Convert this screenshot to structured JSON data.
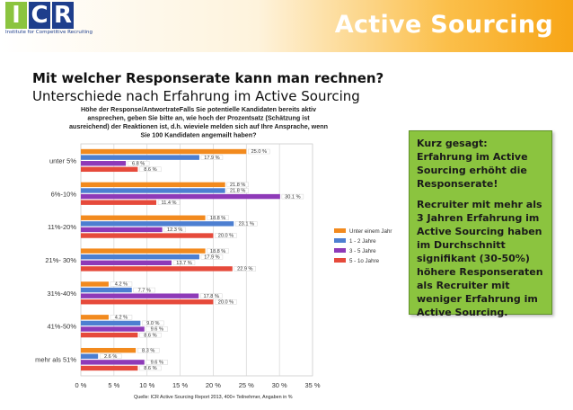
{
  "header": {
    "logo_letters": [
      "I",
      "C",
      "R"
    ],
    "logo_tagline": "Institute for Competitive Recruiting",
    "title": "Active Sourcing"
  },
  "question": {
    "line1": "Mit welcher Responserate kann man rechnen?",
    "line2": "Unterschiede nach Erfahrung im Active Sourcing"
  },
  "callout": {
    "para1": "Kurz gesagt: Erfahrung im Active Sourcing erhöht die Responserate!",
    "para2": "Recruiter mit mehr als 3 Jahren Erfahrung im Active Sourcing haben im Durchschnitt signifikant (30-50%) höhere Responseraten als Recruiter mit weniger Erfahrung im Active Sourcing."
  },
  "chart_data": {
    "type": "bar",
    "orientation": "horizontal",
    "title": "Höhe der Response/AntwortrateFalls Sie potentielle Kandidaten bereits aktiv ansprechen, geben Sie bitte an, wie hoch der Prozentsatz (Schätzung ist ausreichend) der Reaktionen ist, d.h. wieviele melden sich auf Ihre Ansprache, wenn Sie 100 Kandidaten angemailt haben?",
    "title_lines": [
      "Höhe der Response/AntwortrateFalls Sie potentielle Kandidaten bereits aktiv",
      "ansprechen, geben Sie bitte an, wie hoch der Prozentsatz (Schätzung ist",
      "ausreichend) der Reaktionen ist, d.h. wieviele melden sich auf Ihre Ansprache, wenn",
      "Sie 100 Kandidaten angemailt haben?"
    ],
    "categories": [
      "unter 5%",
      "6%-10%",
      "11%-20%",
      "21%- 30%",
      "31%-40%",
      "41%-50%",
      "mehr als 51%"
    ],
    "series": [
      {
        "name": "Unter einem Jahr",
        "color": "#f28a1e",
        "values": [
          25.0,
          21.8,
          18.8,
          18.8,
          4.2,
          4.2,
          8.3
        ],
        "labels": [
          "25.0 %",
          "21.8 %",
          "18.8 %",
          "18.8 %",
          "4.2 %",
          "4.2 %",
          "8.3 %"
        ]
      },
      {
        "name": "1 - 2 Jahre",
        "color": "#4d7fd1",
        "values": [
          17.9,
          21.8,
          23.1,
          17.9,
          7.7,
          9.0,
          2.6
        ],
        "labels": [
          "17.9 %",
          "21.8 %",
          "23.1 %",
          "17.9 %",
          "7.7 %",
          "9.0 %",
          "2.6 %"
        ]
      },
      {
        "name": "3 - 5 Jahre",
        "color": "#8e3ab8",
        "values": [
          6.8,
          30.1,
          12.3,
          13.7,
          17.8,
          9.6,
          9.6
        ],
        "labels": [
          "6.8 %",
          "30.1 %",
          "12.3 %",
          "13.7 %",
          "17.8 %",
          "9.6 %",
          "9.6 %"
        ]
      },
      {
        "name": "5 - 1o Jahre",
        "color": "#e64a3b",
        "values": [
          8.6,
          11.4,
          20.0,
          22.9,
          20.0,
          8.6,
          8.6
        ],
        "labels": [
          "8.6 %",
          "11.4 %",
          "20.0 %",
          "22.9 %",
          "20.0 %",
          "8.6 %",
          "8.6 %"
        ]
      }
    ],
    "xlim": [
      0,
      35
    ],
    "xticks": [
      0,
      5,
      10,
      15,
      20,
      25,
      30,
      35
    ],
    "xtick_labels": [
      "0 %",
      "5 %",
      "10 %",
      "15 %",
      "20 %",
      "25 %",
      "30 %",
      "35 %"
    ],
    "grid": true,
    "legend_position": "right",
    "source_note": "Quelle: ICR Active Sourcing  Report 2013, 400+ Teilnehmer, Angaben in %"
  }
}
